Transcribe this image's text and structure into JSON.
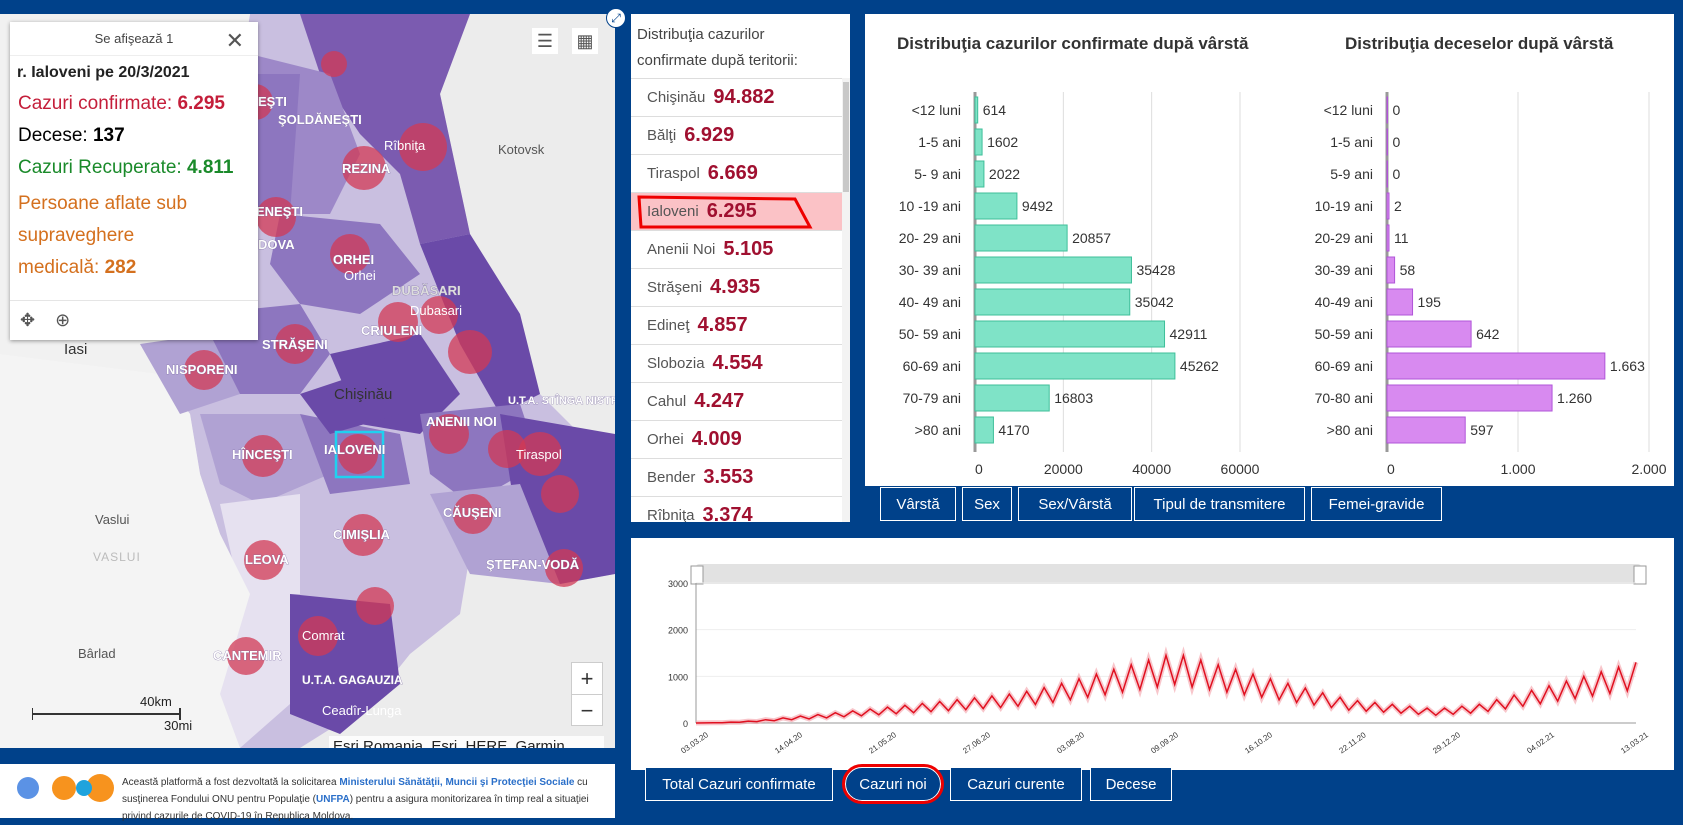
{
  "map": {
    "popup": {
      "header": "Se afişează 1",
      "title": "r. Ialoveni pe 20/3/2021",
      "confirmed_label": "Cazuri confirmate:",
      "confirmed_value": "6.295",
      "deaths_label": "Decese:",
      "deaths_value": "137",
      "recovered_label": "Cazuri Recuperate:",
      "recovered_value": "4.811",
      "supervision_line1": "Persoane aflate sub",
      "supervision_line2": "supraveghere",
      "supervision_line3": "medicală:",
      "supervision_value": "282"
    },
    "region_labels": [
      "ŞOLDĂNEŞTI",
      "REZINA",
      "ORHEI",
      "STRĂŞENI",
      "NISPORENI",
      "CRIULENI",
      "DUBĂSARI",
      "HÎNCEŞTI",
      "IALOVENI",
      "ANENII NOI",
      "U.T.A. STÎNGA NISTRULUI",
      "CĂUŞENI",
      "ŞTEFAN-VODĂ",
      "CIMIŞLIA",
      "LEOVA",
      "CANTEMIR",
      "U.T.A. GAGAUZIA",
      "ENEŞTI",
      "DOVA",
      "EŞTI"
    ],
    "place_labels": [
      "Rîbniţa",
      "Orhei",
      "Dubasari",
      "Tiraspol",
      "Comrat",
      "Ceadîr-Lunga",
      "Kotovsk",
      "Vaslui",
      "Bârlad",
      "Iasi",
      "Chişinău",
      "VASLUI"
    ],
    "scale_label": "40km",
    "scale_label2": "30mi",
    "attribution": "Esri Romania, Esri, HERE, Garmin, ...",
    "zoom_in": "+",
    "zoom_out": "−"
  },
  "territory": {
    "title_line1": "Distribuţia cazurilor",
    "title_line2": "confirmate după teritorii:",
    "rows": [
      {
        "name": "Chişinău",
        "value": "94.882"
      },
      {
        "name": "Bălţi",
        "value": "6.929"
      },
      {
        "name": "Tiraspol",
        "value": "6.669"
      },
      {
        "name": "Ialoveni",
        "value": "6.295"
      },
      {
        "name": "Anenii Noi",
        "value": "5.105"
      },
      {
        "name": "Străşeni",
        "value": "4.935"
      },
      {
        "name": "Edineţ",
        "value": "4.857"
      },
      {
        "name": "Slobozia",
        "value": "4.554"
      },
      {
        "name": "Cahul",
        "value": "4.247"
      },
      {
        "name": "Orhei",
        "value": "4.009"
      },
      {
        "name": "Bender",
        "value": "3.553"
      },
      {
        "name": "Rîbniţa",
        "value": "3.374"
      }
    ]
  },
  "age_tabs": [
    "Vârstă",
    "Sex",
    "Sex/Vârstă",
    "Tipul de transmitere",
    "Femei-gravide"
  ],
  "ts_tabs": [
    "Total Cazuri confirmate",
    "Cazuri noi",
    "Cazuri curente",
    "Decese"
  ],
  "chart_data": [
    {
      "type": "bar",
      "orientation": "horizontal",
      "title": "Distribuţia cazurilor confirmate după vârstă",
      "categories": [
        "<12 luni",
        "1-5 ani",
        "5- 9 ani",
        "10 -19 ani",
        "20- 29 ani",
        "30- 39 ani",
        "40- 49 ani",
        "50- 59 ani",
        "60-69 ani",
        "70-79 ani",
        ">80 ani"
      ],
      "values": [
        614,
        1602,
        2022,
        9492,
        20857,
        35428,
        35042,
        42911,
        45262,
        16803,
        4170
      ],
      "value_labels": [
        "614",
        "1602",
        "2022",
        "9492",
        "20857",
        "35428",
        "35042",
        "42911",
        "45262",
        "16803",
        "4170"
      ],
      "xlim": [
        0,
        60000
      ],
      "xticks": [
        "0",
        "20000",
        "40000",
        "60000"
      ],
      "color": "#7fe3c7"
    },
    {
      "type": "bar",
      "orientation": "horizontal",
      "title": "Distribuţia deceselor după vârstă",
      "categories": [
        "<12 luni",
        "1-5 ani",
        "5-9 ani",
        "10-19 ani",
        "20-29 ani",
        "30-39 ani",
        "40-49 ani",
        "50-59 ani",
        "60-69 ani",
        "70-80 ani",
        ">80 ani"
      ],
      "values": [
        0,
        0,
        0,
        2,
        11,
        58,
        195,
        642,
        1663,
        1260,
        597
      ],
      "value_labels": [
        "0",
        "0",
        "0",
        "2",
        "11",
        "58",
        "195",
        "642",
        "1.663",
        "1.260",
        "597"
      ],
      "xlim": [
        0,
        2000
      ],
      "xticks": [
        "0",
        "1.000",
        "2.000"
      ],
      "color": "#d88af0"
    },
    {
      "type": "line",
      "title": "",
      "x_ticks": [
        "03.03.20",
        "14.04.20",
        "21.05.20",
        "27.06.20",
        "03.08.20",
        "09.09.20",
        "16.10.20",
        "22.11.20",
        "29.12.20",
        "04.02.21",
        "13.03.21"
      ],
      "yticks": [
        "0",
        "1000",
        "2000",
        "3000"
      ],
      "ylim": [
        0,
        3000
      ],
      "series": [
        {
          "values": [
            0,
            2,
            5,
            10,
            20,
            30,
            40,
            55,
            70,
            90,
            110,
            130,
            150,
            160,
            180,
            200,
            220,
            240,
            260,
            280,
            300,
            320,
            340,
            360,
            380,
            400,
            420,
            440,
            460,
            480,
            500,
            520,
            540,
            560,
            580,
            600,
            620,
            650,
            680,
            720,
            760,
            800,
            850,
            900,
            950,
            1000,
            1050,
            1100,
            1150,
            1200,
            1250,
            1300,
            1350,
            1400,
            1450,
            1500,
            1450,
            1400,
            1350,
            1300,
            1250,
            1200,
            1150,
            1100,
            1050,
            1000,
            950,
            900,
            850,
            800,
            750,
            700,
            650,
            600,
            550,
            500,
            480,
            460,
            440,
            420,
            400,
            380,
            360,
            340,
            320,
            300,
            320,
            340,
            360,
            380,
            400,
            450,
            500,
            550,
            600,
            650,
            700,
            750,
            800,
            850,
            900,
            950,
            1000,
            1050,
            1100,
            1150,
            1200,
            1250,
            1300
          ]
        }
      ]
    }
  ]
}
